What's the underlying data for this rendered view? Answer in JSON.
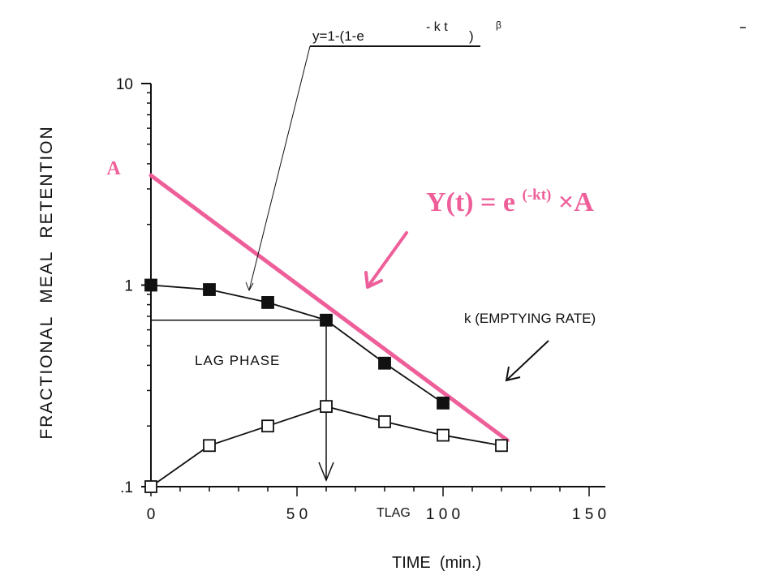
{
  "chart_data": {
    "type": "line",
    "xlabel": "TIME  (min.)",
    "ylabel": "FRACTIONAL  MEAL  RETENTION",
    "x_ticks": [
      0,
      50,
      100,
      150
    ],
    "x_tick_labels": [
      "0",
      "5 0",
      "1 0 0",
      "1 5 0"
    ],
    "y_ticks": [
      0.1,
      1,
      10
    ],
    "y_tick_labels": [
      ".1",
      "1",
      "10"
    ],
    "xlim": [
      0,
      150
    ],
    "ylim": [
      0.1,
      10
    ],
    "y_scale": "log",
    "grid": false,
    "series": [
      {
        "marker": "filled-square",
        "x": [
          0,
          20,
          40,
          60,
          80,
          100
        ],
        "y": [
          1.0,
          0.95,
          0.82,
          0.67,
          0.41,
          0.26
        ]
      },
      {
        "marker": "open-square",
        "x": [
          0,
          20,
          40,
          60,
          80,
          100,
          120
        ],
        "y": [
          0.1,
          0.16,
          0.2,
          0.25,
          0.21,
          0.18,
          0.16
        ]
      }
    ],
    "fit_line": {
      "x": [
        0,
        122
      ],
      "y": [
        3.5,
        0.17
      ],
      "color": "#ee5f9a"
    },
    "lag_line": {
      "y": 0.67,
      "x_end": 60
    },
    "annotations": {
      "formula_top": "y=1-(1-e",
      "formula_exp": "- k t",
      "formula_close": ")",
      "formula_beta": "β",
      "pink_A": "A",
      "pink_formula_base": "Y(t) = e",
      "pink_formula_exp": "(-kt)",
      "pink_formula_tail": "×A",
      "emptying_rate": "k (EMPTYING RATE)",
      "lag_phase": "LAG PHASE",
      "tlag": "TLAG"
    }
  }
}
